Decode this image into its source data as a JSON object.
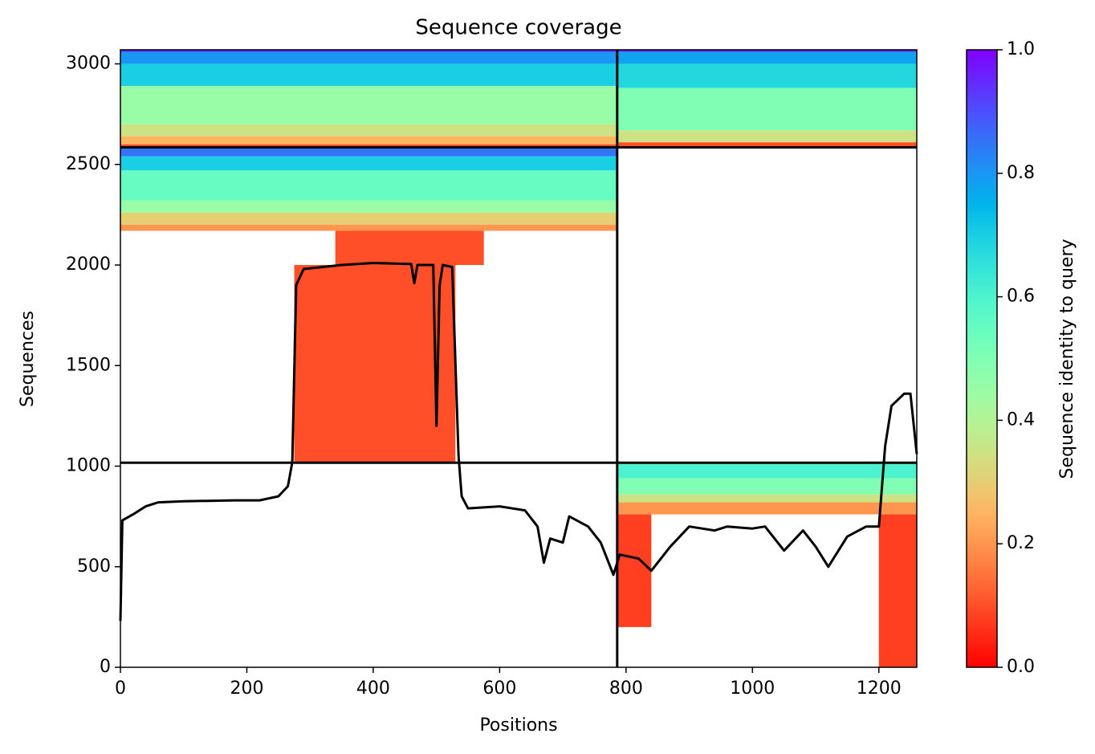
{
  "chart_data": {
    "type": "coverage",
    "title": "Sequence coverage",
    "x_label": "Positions",
    "y_label": "Sequences",
    "colorbar_label": "Sequence identity to query",
    "xlim": [
      0,
      1260
    ],
    "ylim": [
      0,
      3070
    ],
    "xticks": [
      0,
      200,
      400,
      600,
      800,
      1000,
      1200
    ],
    "yticks": [
      0,
      500,
      1000,
      1500,
      2000,
      2500,
      3000
    ],
    "clim": [
      0,
      1
    ],
    "cticks": [
      {
        "value": 0,
        "label": "0.0"
      },
      0.2,
      0.4,
      0.6,
      0.8,
      {
        "value": 1,
        "label": "1.0"
      }
    ],
    "colormap": "rainbow_r",
    "chain_breaks_x": [
      786
    ],
    "chain_breaks_y": [
      1017,
      2585
    ],
    "bands": [
      {
        "x": [
          0,
          786
        ],
        "y": [
          3060,
          3070
        ],
        "identity": 0.95
      },
      {
        "x": [
          0,
          786
        ],
        "y": [
          3000,
          3060
        ],
        "identity": 0.8
      },
      {
        "x": [
          0,
          786
        ],
        "y": [
          2890,
          3000
        ],
        "identity": 0.7
      },
      {
        "x": [
          0,
          786
        ],
        "y": [
          2700,
          2890
        ],
        "identity": 0.45
      },
      {
        "x": [
          0,
          786
        ],
        "y": [
          2640,
          2700
        ],
        "identity": 0.35
      },
      {
        "x": [
          0,
          786
        ],
        "y": [
          2600,
          2640
        ],
        "identity": 0.25
      },
      {
        "x": [
          0,
          786
        ],
        "y": [
          2585,
          2600
        ],
        "identity": 0.1
      },
      {
        "x": [
          786,
          1260
        ],
        "y": [
          3060,
          3070
        ],
        "identity": 0.95
      },
      {
        "x": [
          786,
          1260
        ],
        "y": [
          3000,
          3060
        ],
        "identity": 0.78
      },
      {
        "x": [
          786,
          1260
        ],
        "y": [
          2880,
          3000
        ],
        "identity": 0.68
      },
      {
        "x": [
          786,
          1260
        ],
        "y": [
          2670,
          2880
        ],
        "identity": 0.5
      },
      {
        "x": [
          786,
          1260
        ],
        "y": [
          2610,
          2670
        ],
        "identity": 0.35
      },
      {
        "x": [
          786,
          1260
        ],
        "y": [
          2585,
          2610
        ],
        "identity": 0.1
      },
      {
        "x": [
          0,
          786
        ],
        "y": [
          2540,
          2585
        ],
        "identity": 0.85
      },
      {
        "x": [
          0,
          786
        ],
        "y": [
          2470,
          2540
        ],
        "identity": 0.7
      },
      {
        "x": [
          0,
          786
        ],
        "y": [
          2320,
          2470
        ],
        "identity": 0.55
      },
      {
        "x": [
          0,
          786
        ],
        "y": [
          2260,
          2320
        ],
        "identity": 0.45
      },
      {
        "x": [
          0,
          786
        ],
        "y": [
          2200,
          2260
        ],
        "identity": 0.3
      },
      {
        "x": [
          0,
          786
        ],
        "y": [
          2170,
          2200
        ],
        "identity": 0.2
      },
      {
        "x": [
          340,
          575
        ],
        "y": [
          2000,
          2170
        ],
        "identity": 0.1
      },
      {
        "x": [
          275,
          530
        ],
        "y": [
          1017,
          2000
        ],
        "identity": 0.1
      },
      {
        "x": [
          786,
          1260
        ],
        "y": [
          940,
          1017
        ],
        "identity": 0.6
      },
      {
        "x": [
          786,
          1260
        ],
        "y": [
          860,
          940
        ],
        "identity": 0.5
      },
      {
        "x": [
          786,
          1260
        ],
        "y": [
          820,
          860
        ],
        "identity": 0.35
      },
      {
        "x": [
          786,
          1260
        ],
        "y": [
          760,
          820
        ],
        "identity": 0.2
      },
      {
        "x": [
          1200,
          1260
        ],
        "y": [
          0,
          760
        ],
        "identity": 0.08
      },
      {
        "x": [
          786,
          840
        ],
        "y": [
          200,
          760
        ],
        "identity": 0.08
      }
    ],
    "coverage": {
      "x": [
        0,
        3,
        20,
        40,
        60,
        100,
        180,
        220,
        250,
        265,
        272,
        278,
        290,
        350,
        400,
        460,
        465,
        470,
        495,
        500,
        505,
        510,
        525,
        535,
        540,
        550,
        600,
        640,
        660,
        670,
        680,
        700,
        710,
        740,
        760,
        780,
        790,
        820,
        840,
        870,
        900,
        940,
        960,
        1000,
        1020,
        1050,
        1080,
        1100,
        1120,
        1150,
        1180,
        1200,
        1210,
        1220,
        1240,
        1250,
        1260
      ],
      "values": [
        230,
        730,
        760,
        800,
        820,
        825,
        830,
        830,
        850,
        900,
        1020,
        1900,
        1980,
        2000,
        2010,
        2005,
        1910,
        2000,
        2000,
        1200,
        1900,
        2000,
        1990,
        1050,
        850,
        790,
        800,
        780,
        700,
        520,
        640,
        620,
        750,
        700,
        620,
        460,
        560,
        540,
        480,
        600,
        700,
        680,
        700,
        690,
        700,
        580,
        680,
        600,
        500,
        650,
        700,
        700,
        1100,
        1300,
        1360,
        1360,
        1060
      ],
      "color": "#000000"
    }
  }
}
